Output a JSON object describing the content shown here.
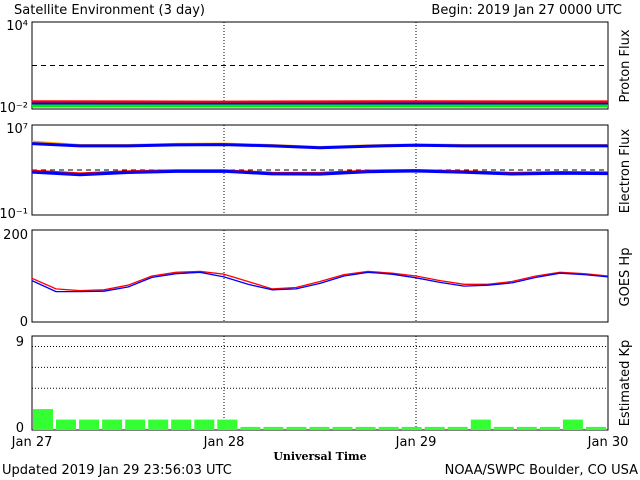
{
  "header": {
    "title": "Satellite Environment (3 day)",
    "begin": "Begin:  2019 Jan 27 0000 UTC"
  },
  "footer": {
    "updated": "Updated 2019 Jan 29 23:56:03 UTC",
    "credit": "NOAA/SWPC Boulder, CO USA"
  },
  "x_axis": {
    "title": "Universal Time",
    "ticks": [
      "Jan 27",
      "Jan 28",
      "Jan 29",
      "Jan 30"
    ]
  },
  "colors": {
    "red": "#ff0000",
    "blue": "#0000ff",
    "green": "#00ee00",
    "orange": "#ffa500",
    "kp_bar": "#33ff33"
  },
  "chart_data": [
    {
      "type": "line",
      "ylabel": "Proton Flux",
      "yscale": "log",
      "ylim": [
        0.01,
        10000
      ],
      "ytick_labels": {
        "bottom": "10⁻²",
        "top": "10⁴"
      },
      "threshold": 10,
      "x_range_days": [
        0,
        3
      ],
      "series": [
        {
          "color": "red",
          "x": [
            0,
            0.5,
            1,
            1.5,
            2,
            2.5,
            3
          ],
          "y": [
            0.032,
            0.031,
            0.03,
            0.031,
            0.032,
            0.031,
            0.031
          ]
        },
        {
          "color": "blue",
          "x": [
            0,
            0.5,
            1,
            1.5,
            2,
            2.5,
            3
          ],
          "y": [
            0.022,
            0.021,
            0.021,
            0.021,
            0.022,
            0.021,
            0.021
          ]
        },
        {
          "color": "green",
          "x": [
            0,
            0.5,
            1,
            1.5,
            2,
            2.5,
            3
          ],
          "y": [
            0.016,
            0.016,
            0.016,
            0.016,
            0.016,
            0.016,
            0.016
          ]
        }
      ]
    },
    {
      "type": "line",
      "ylabel": "Electron Flux",
      "yscale": "log",
      "ylim": [
        0.1,
        10000000
      ],
      "ytick_labels": {
        "bottom": "10⁻¹",
        "top": "10⁷"
      },
      "threshold": 1000,
      "x_range_days": [
        0,
        3
      ],
      "series": [
        {
          "color": "orange",
          "x": [
            0,
            0.25,
            0.5,
            0.75,
            1,
            1.25,
            1.5,
            1.75,
            2,
            2.25,
            2.5,
            2.75,
            3
          ],
          "y": [
            300000,
            150000,
            150000,
            190000,
            200000,
            150000,
            100000,
            140000,
            170000,
            150000,
            150000,
            150000,
            150000
          ]
        },
        {
          "color": "blue",
          "x": [
            0,
            0.25,
            0.5,
            0.75,
            1,
            1.25,
            1.5,
            1.75,
            2,
            2.25,
            2.5,
            2.75,
            3
          ],
          "y": [
            220000,
            140000,
            140000,
            170000,
            180000,
            140000,
            95000,
            130000,
            160000,
            140000,
            140000,
            140000,
            140000
          ]
        },
        {
          "color": "red",
          "x": [
            0,
            0.25,
            0.5,
            0.75,
            1,
            1.25,
            1.5,
            1.75,
            2,
            2.25,
            2.5,
            2.75,
            3
          ],
          "y": [
            800,
            450,
            700,
            850,
            850,
            520,
            500,
            800,
            900,
            700,
            500,
            600,
            550
          ]
        },
        {
          "color": "blue",
          "x": [
            0,
            0.25,
            0.5,
            0.75,
            1,
            1.25,
            1.5,
            1.75,
            2,
            2.25,
            2.5,
            2.75,
            3
          ],
          "y": [
            650,
            380,
            600,
            750,
            780,
            450,
            430,
            700,
            820,
            620,
            440,
            520,
            480
          ]
        }
      ]
    },
    {
      "type": "line",
      "ylabel": "GOES Hp",
      "ylim": [
        0,
        200
      ],
      "ytick_labels": {
        "bottom": "0",
        "top": "200"
      },
      "x_range_days": [
        0,
        3
      ],
      "series": [
        {
          "color": "red",
          "x": [
            0,
            0.125,
            0.25,
            0.375,
            0.5,
            0.625,
            0.75,
            0.875,
            1,
            1.125,
            1.25,
            1.375,
            1.5,
            1.625,
            1.75,
            1.875,
            2,
            2.125,
            2.25,
            2.375,
            2.5,
            2.625,
            2.75,
            2.875,
            3
          ],
          "y": [
            95,
            72,
            68,
            70,
            80,
            100,
            108,
            110,
            104,
            88,
            72,
            75,
            88,
            103,
            110,
            106,
            100,
            90,
            82,
            82,
            88,
            100,
            108,
            105,
            100
          ]
        },
        {
          "color": "blue",
          "x": [
            0,
            0.125,
            0.25,
            0.375,
            0.5,
            0.625,
            0.75,
            0.875,
            1,
            1.125,
            1.25,
            1.375,
            1.5,
            1.625,
            1.75,
            1.875,
            2,
            2.125,
            2.25,
            2.375,
            2.5,
            2.625,
            2.75,
            2.875,
            3
          ],
          "y": [
            90,
            66,
            66,
            67,
            76,
            97,
            105,
            108,
            98,
            82,
            70,
            72,
            84,
            100,
            108,
            104,
            96,
            86,
            78,
            80,
            85,
            97,
            106,
            103,
            98
          ]
        }
      ]
    },
    {
      "type": "bar",
      "ylabel": "Estimated Kp",
      "ylim": [
        0,
        9
      ],
      "ytick_labels": {
        "bottom": "0",
        "top": "9"
      },
      "gridlines": [
        4,
        6,
        8
      ],
      "x_range_days": [
        0,
        3
      ],
      "values": [
        2,
        1,
        1,
        1,
        1,
        1,
        1,
        1,
        1,
        0.3,
        0.3,
        0.3,
        0.3,
        0.3,
        0.3,
        0.3,
        0.3,
        0.3,
        0.3,
        1,
        0.3,
        0.3,
        0.3,
        1,
        0.3
      ]
    }
  ]
}
